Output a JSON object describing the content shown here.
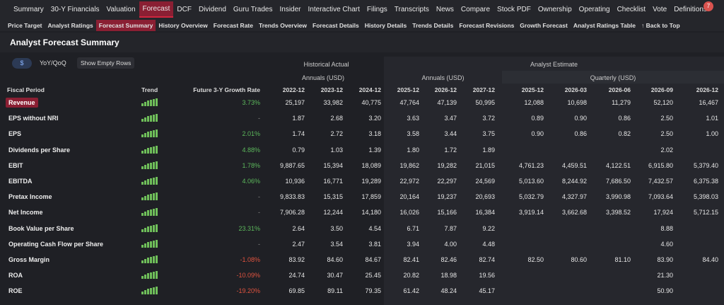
{
  "nav": {
    "tabs": [
      "Summary",
      "30-Y Financials",
      "Valuation",
      "Forecast",
      "DCF",
      "Dividend",
      "Guru Trades",
      "Insider",
      "Interactive Chart",
      "Filings",
      "Transcripts",
      "News",
      "Compare",
      "Stock PDF",
      "Ownership",
      "Operating",
      "Checklist",
      "Vote",
      "Definitions"
    ],
    "active": 3,
    "badge": "7"
  },
  "subnav": {
    "links": [
      "Price Target",
      "Analyst Ratings",
      "Forecast Summary",
      "History Overview",
      "Forecast Rate",
      "Trends Overview",
      "Forecast Details",
      "History Details",
      "Trends Details",
      "Forecast Revisions",
      "Growth Forecast",
      "Analyst Ratings Table",
      "Back to Top"
    ],
    "active": 2
  },
  "header": {
    "title": "Analyst Forecast Summary"
  },
  "controls": {
    "currency": "$",
    "mode": "YoY/QoQ",
    "toggle": "Show Empty Rows"
  },
  "table": {
    "groups": [
      "Historical Actual",
      "Analyst Estimate"
    ],
    "subgroups": [
      "Annuals (USD)",
      "Annuals (USD)",
      "Quarterly (USD)"
    ],
    "columns": [
      "Fiscal Period",
      "Trend",
      "Future 3-Y Growth Rate",
      "2022-12",
      "2023-12",
      "2024-12",
      "2025-12",
      "2026-12",
      "2027-12",
      "2025-12",
      "2026-03",
      "2026-06",
      "2026-09",
      "2026-12"
    ],
    "rows": [
      {
        "label": "Revenue",
        "growth": "3.73%",
        "cells": [
          "25,197",
          "33,982",
          "40,775",
          "47,764",
          "47,139",
          "50,995",
          "12,088",
          "10,698",
          "11,279",
          "52,120",
          "16,467"
        ]
      },
      {
        "label": "EPS without NRI",
        "growth": "-",
        "cells": [
          "1.87",
          "2.68",
          "3.20",
          "3.63",
          "3.47",
          "3.72",
          "0.89",
          "0.90",
          "0.86",
          "2.50",
          "1.01"
        ]
      },
      {
        "label": "EPS",
        "growth": "2.01%",
        "cells": [
          "1.74",
          "2.72",
          "3.18",
          "3.58",
          "3.44",
          "3.75",
          "0.90",
          "0.86",
          "0.82",
          "2.50",
          "1.00"
        ]
      },
      {
        "label": "Dividends per Share",
        "growth": "4.88%",
        "cells": [
          "0.79",
          "1.03",
          "1.39",
          "1.80",
          "1.72",
          "1.89",
          null,
          null,
          null,
          "2.02",
          null
        ]
      },
      {
        "label": "EBIT",
        "growth": "1.78%",
        "cells": [
          "9,887.65",
          "15,394",
          "18,089",
          "19,862",
          "19,282",
          "21,015",
          "4,761.23",
          "4,459.51",
          "4,122.51",
          "6,915.80",
          "5,379.40"
        ]
      },
      {
        "label": "EBITDA",
        "growth": "4.06%",
        "cells": [
          "10,936",
          "16,771",
          "19,289",
          "22,972",
          "22,297",
          "24,569",
          "5,013.60",
          "8,244.92",
          "7,686.50",
          "7,432.57",
          "6,375.38"
        ]
      },
      {
        "label": "Pretax Income",
        "growth": "-",
        "cells": [
          "9,833.83",
          "15,315",
          "17,859",
          "20,164",
          "19,237",
          "20,693",
          "5,032.79",
          "4,327.97",
          "3,990.98",
          "7,093.64",
          "5,398.03"
        ]
      },
      {
        "label": "Net Income",
        "growth": "-",
        "cells": [
          "7,906.28",
          "12,244",
          "14,180",
          "16,026",
          "15,166",
          "16,384",
          "3,919.14",
          "3,662.68",
          "3,398.52",
          "17,924",
          "5,712.15"
        ]
      },
      {
        "label": "Book Value per Share",
        "growth": "23.31%",
        "cells": [
          "2.64",
          "3.50",
          "4.54",
          "6.71",
          "7.87",
          "9.22",
          null,
          null,
          null,
          "8.88",
          null
        ]
      },
      {
        "label": "Operating Cash Flow per Share",
        "growth": "-",
        "cells": [
          "2.47",
          "3.54",
          "3.81",
          "3.94",
          "4.00",
          "4.48",
          null,
          null,
          null,
          "4.60",
          null
        ]
      },
      {
        "label": "Gross Margin",
        "growth": "-1.08%",
        "cells": [
          "83.92",
          "84.60",
          "84.67",
          "82.41",
          "82.46",
          "82.74",
          "82.50",
          "80.60",
          "81.10",
          "83.90",
          "84.40"
        ]
      },
      {
        "label": "ROA",
        "growth": "-10.09%",
        "cells": [
          "24.74",
          "30.47",
          "25.45",
          "20.82",
          "18.98",
          "19.56",
          null,
          null,
          null,
          "21.30",
          null
        ]
      },
      {
        "label": "ROE",
        "growth": "-19.20%",
        "cells": [
          "69.85",
          "89.11",
          "79.35",
          "61.42",
          "48.24",
          "45.17",
          null,
          null,
          null,
          "50.90",
          null
        ]
      }
    ]
  }
}
